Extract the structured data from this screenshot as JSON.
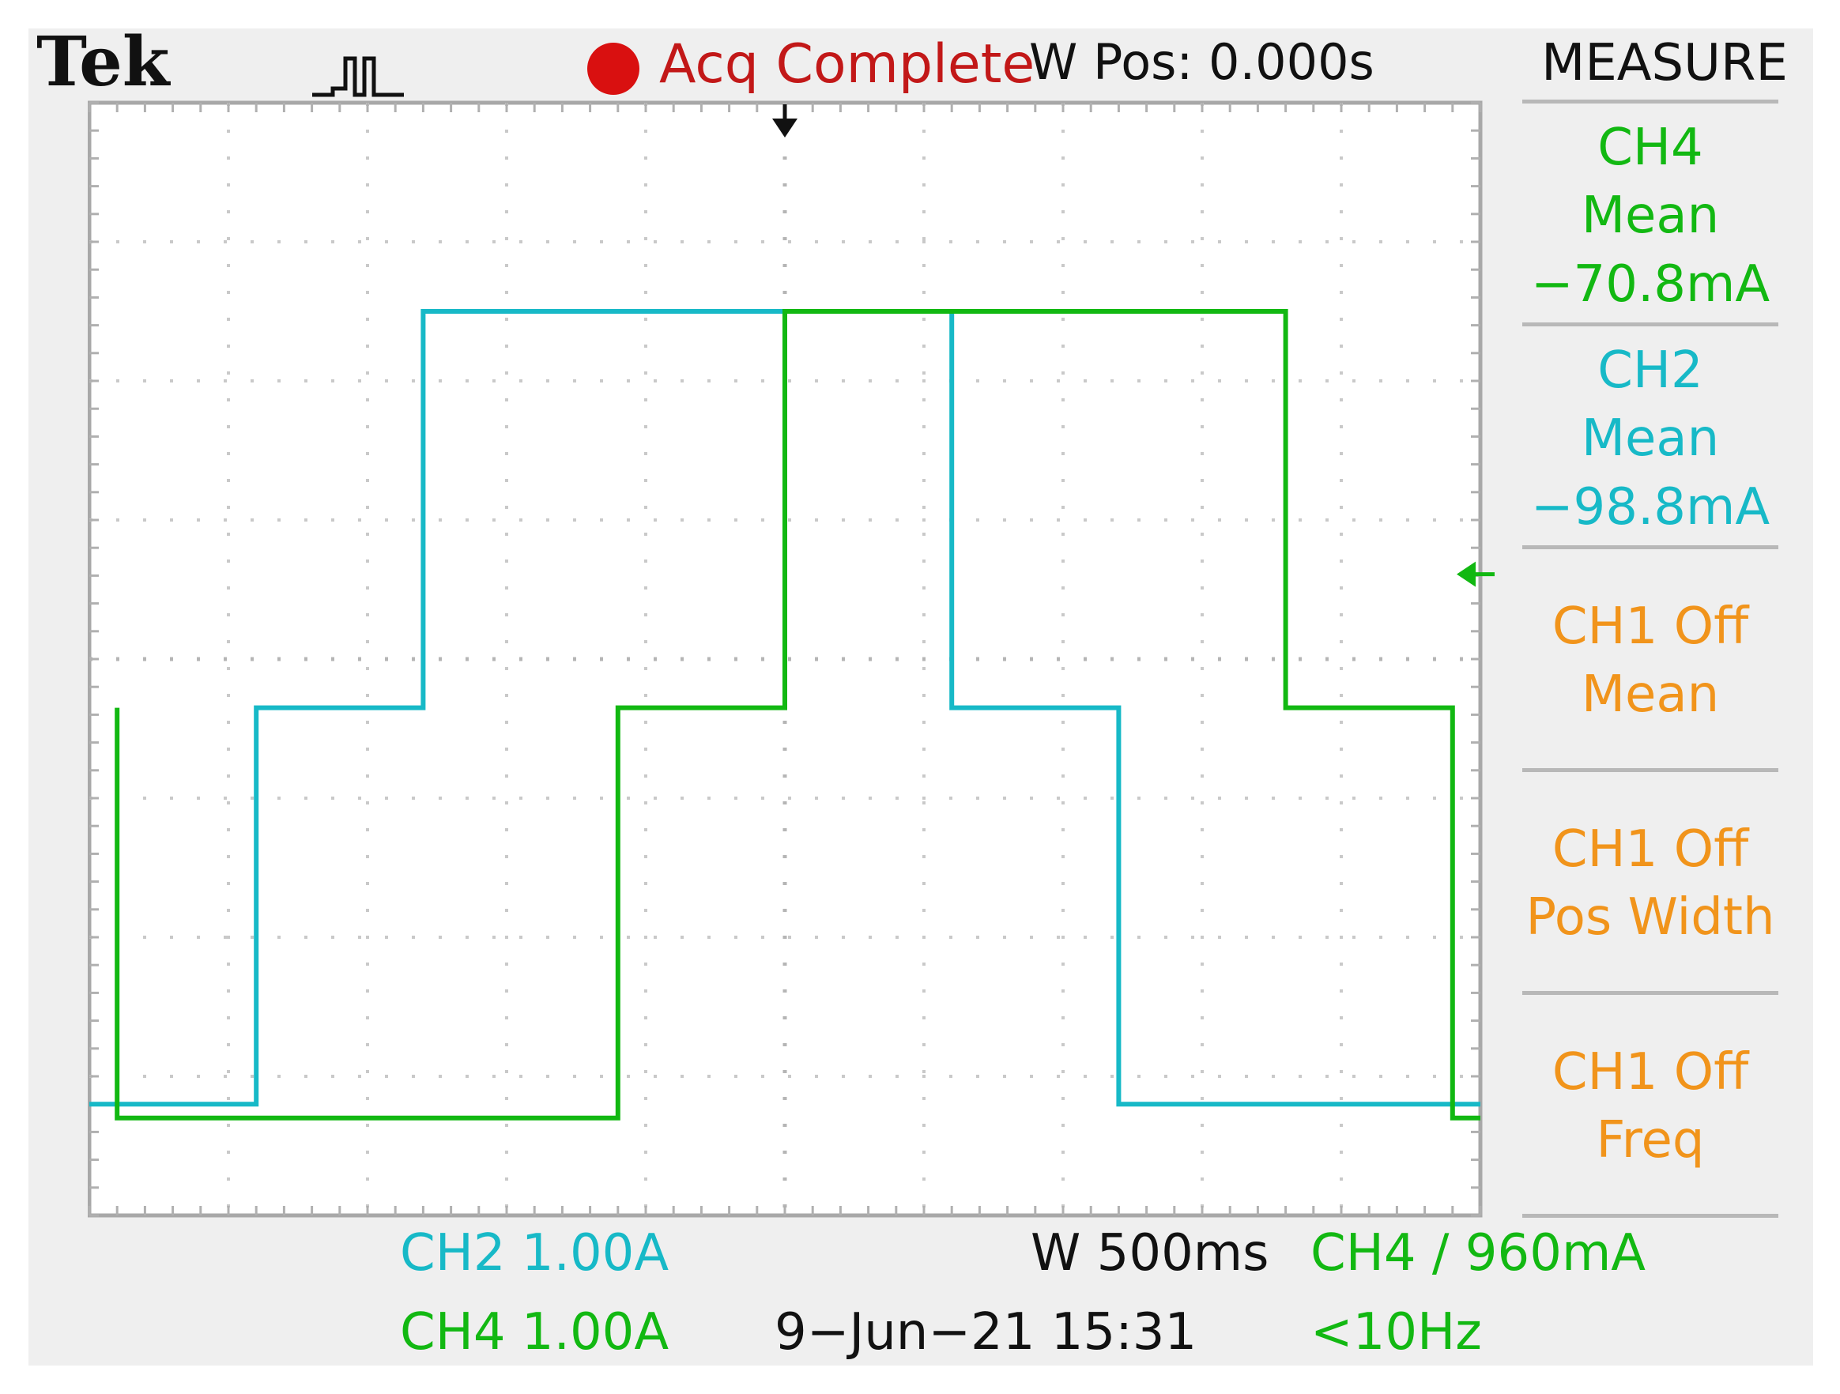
{
  "header": {
    "brand": "Tek",
    "acq_status": "Acq Complete",
    "w_pos": "W Pos: 0.000s",
    "menu_title": "MEASURE"
  },
  "measurements": [
    {
      "line1": "CH4",
      "line2": "Mean",
      "line3": "−70.8mA",
      "color": "#12b812"
    },
    {
      "line1": "CH2",
      "line2": "Mean",
      "line3": "−98.8mA",
      "color": "#17b9c7"
    },
    {
      "line1": "CH1 Off",
      "line2": "Mean",
      "line3": "",
      "color": "#f1941b"
    },
    {
      "line1": "CH1 Off",
      "line2": "Pos Width",
      "line3": "",
      "color": "#f1941b"
    },
    {
      "line1": "CH1 Off",
      "line2": "Freq",
      "line3": "",
      "color": "#f1941b"
    }
  ],
  "footer": {
    "ch2_scale": "CH2  1.00A",
    "ch4_scale": "CH4  1.00A",
    "timebase": "W 500ms",
    "trigger": "CH4 ∕ 960mA",
    "datetime": "9−Jun−21 15:31",
    "trigger_freq": "<10Hz"
  },
  "chart_data": {
    "type": "line",
    "xlim": [
      -2.5,
      2.5
    ],
    "ylim": [
      -3.65,
      4.35
    ],
    "grid": true,
    "x_unit": "s",
    "y_unit": "A",
    "series": [
      {
        "name": "CH2",
        "color": "#17b9c7",
        "x": [
          -2.5,
          -1.9,
          -1.9,
          -1.3,
          -1.3,
          0.6,
          0.6,
          1.2,
          1.2,
          2.5
        ],
        "y": [
          -2.85,
          -2.85,
          0.0,
          0.0,
          2.85,
          2.85,
          0.0,
          0.0,
          -2.85,
          -2.85
        ]
      },
      {
        "name": "CH4",
        "color": "#12b812",
        "x": [
          -2.4,
          -2.4,
          -0.6,
          -0.6,
          0.0,
          0.0,
          1.8,
          1.8,
          2.4,
          2.4,
          2.5
        ],
        "y": [
          0.0,
          -2.95,
          -2.95,
          0.0,
          0.0,
          2.85,
          2.85,
          0.0,
          0.0,
          -2.95,
          -2.95
        ]
      }
    ]
  }
}
